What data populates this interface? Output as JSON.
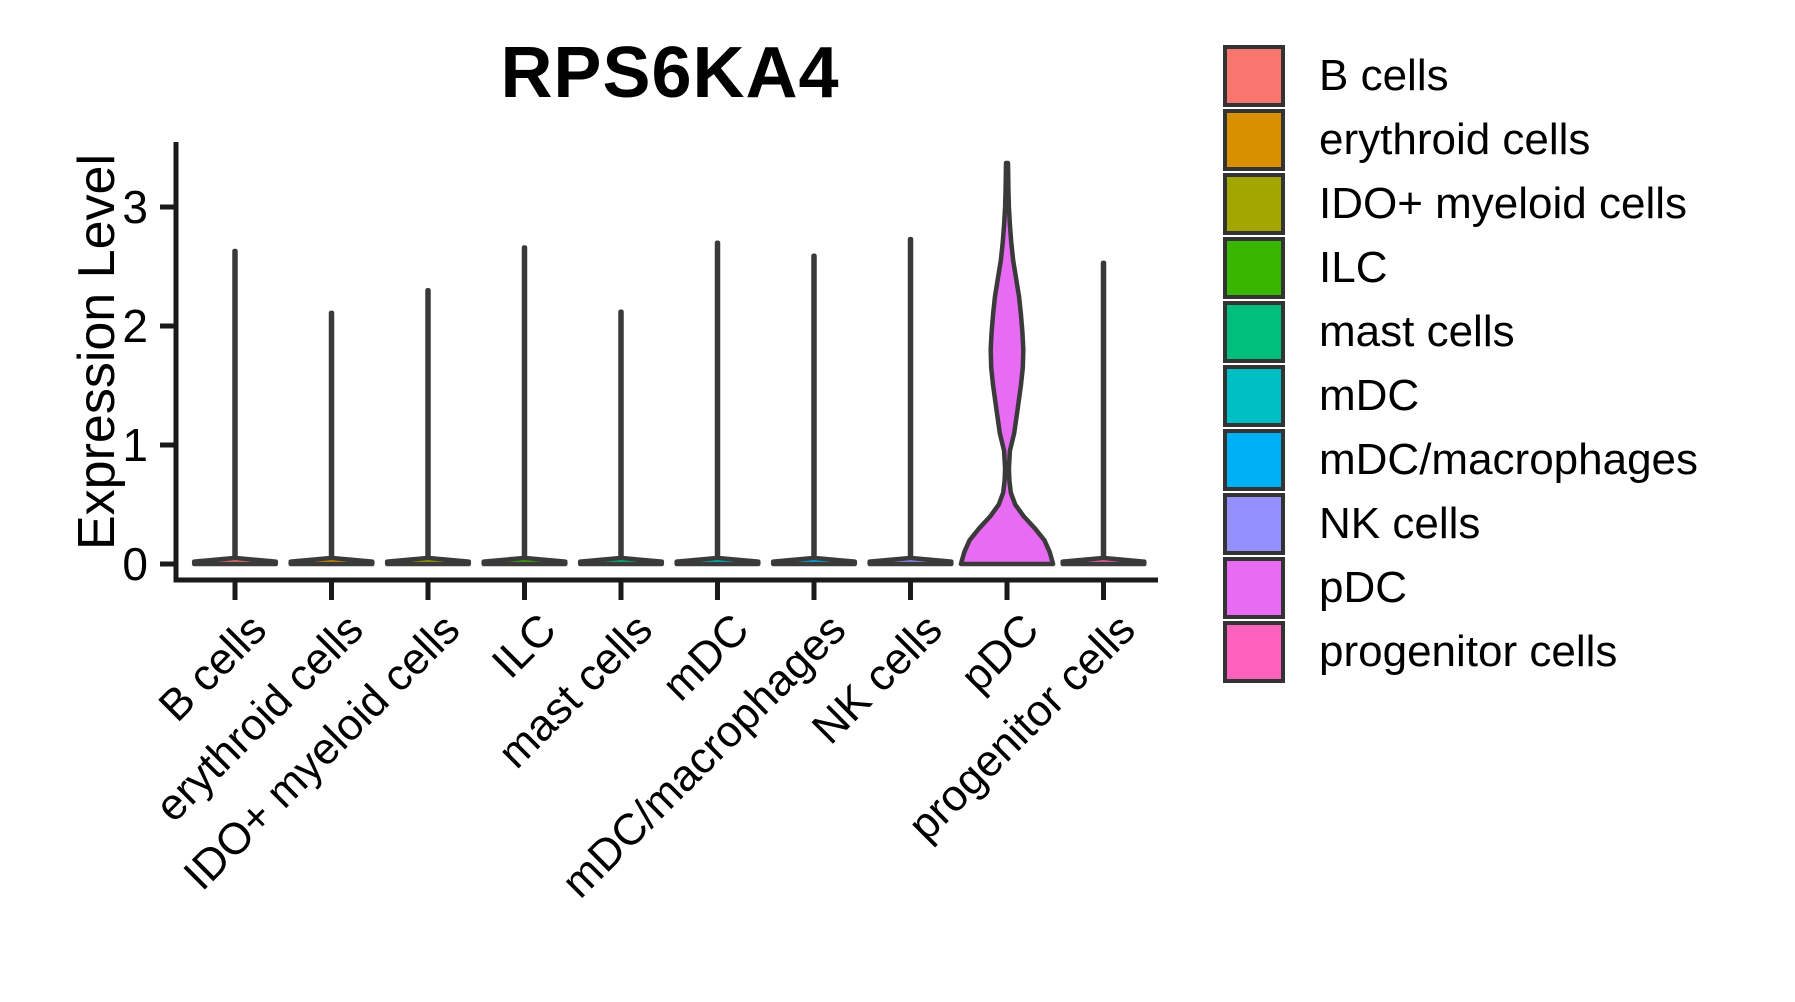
{
  "title": "RPS6KA4",
  "chart_data": {
    "type": "violin",
    "title": "RPS6KA4",
    "xlabel": "",
    "ylabel": "Expression Level",
    "yticks": [
      0,
      1,
      2,
      3
    ],
    "ylim": [
      0,
      3.55
    ],
    "grid": false,
    "legend_position": "right",
    "categories": [
      "B cells",
      "erythroid cells",
      "IDO+ myeloid cells",
      "ILC",
      "mast cells",
      "mDC",
      "mDC/macrophages",
      "NK cells",
      "pDC",
      "progenitor cells"
    ],
    "series": [
      {
        "name": "B cells",
        "color": "#F8766D",
        "max": 2.63,
        "shape": "spike"
      },
      {
        "name": "erythroid cells",
        "color": "#D89000",
        "max": 2.11,
        "shape": "spike"
      },
      {
        "name": "IDO+ myeloid cells",
        "color": "#A3A500",
        "max": 2.3,
        "shape": "spike"
      },
      {
        "name": "ILC",
        "color": "#39B600",
        "max": 2.66,
        "shape": "spike"
      },
      {
        "name": "mast cells",
        "color": "#00BF7D",
        "max": 2.12,
        "shape": "spike"
      },
      {
        "name": "mDC",
        "color": "#00BFC4",
        "max": 2.7,
        "shape": "spike"
      },
      {
        "name": "mDC/macrophages",
        "color": "#00B0F6",
        "max": 2.59,
        "shape": "spike"
      },
      {
        "name": "NK cells",
        "color": "#9590FF",
        "max": 2.73,
        "shape": "spike"
      },
      {
        "name": "pDC",
        "color": "#E76BF3",
        "max": 3.37,
        "shape": "violin",
        "profile": [
          [
            0,
            0.96
          ],
          [
            0.1,
            0.89
          ],
          [
            0.2,
            0.78
          ],
          [
            0.3,
            0.58
          ],
          [
            0.4,
            0.35
          ],
          [
            0.5,
            0.17
          ],
          [
            0.6,
            0.08
          ],
          [
            0.7,
            0.05
          ],
          [
            0.8,
            0.04
          ],
          [
            0.95,
            0.06
          ],
          [
            1.1,
            0.15
          ],
          [
            1.3,
            0.22
          ],
          [
            1.5,
            0.29
          ],
          [
            1.65,
            0.33
          ],
          [
            1.8,
            0.34
          ],
          [
            1.95,
            0.32
          ],
          [
            2.1,
            0.29
          ],
          [
            2.25,
            0.25
          ],
          [
            2.4,
            0.19
          ],
          [
            2.55,
            0.13
          ],
          [
            2.7,
            0.09
          ],
          [
            2.85,
            0.06
          ],
          [
            3.0,
            0.04
          ],
          [
            3.15,
            0.03
          ],
          [
            3.37,
            0.02
          ]
        ]
      },
      {
        "name": "progenitor cells",
        "color": "#FF62BC",
        "max": 2.53,
        "shape": "spike"
      }
    ],
    "style": {
      "axis_color": "#1a1a1a",
      "violin_outline_color": "#3a3a3a",
      "text_color": "#000000",
      "legend_border_color": "#333333"
    }
  }
}
